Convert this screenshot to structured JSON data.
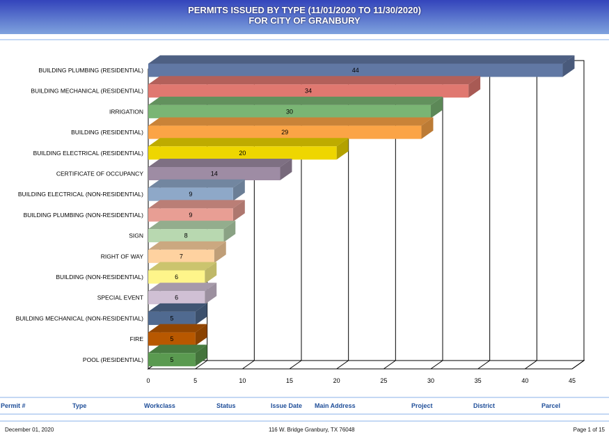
{
  "header": {
    "title_line1": "PERMITS ISSUED BY TYPE (11/01/2020 TO 11/30/2020)",
    "title_line2": "FOR CITY OF GRANBURY"
  },
  "chart_data": {
    "type": "bar",
    "orientation": "horizontal",
    "style": "3d",
    "grid": true,
    "categories": [
      "BUILDING PLUMBING (RESIDENTIAL)",
      "BUILDING MECHANICAL (RESIDENTIAL)",
      "IRRIGATION",
      "BUILDING (RESIDENTIAL)",
      "BUILDING ELECTRICAL (RESIDENTIAL)",
      "CERTIFICATE OF OCCUPANCY",
      "BUILDING ELECTRICAL (NON-RESIDENTIAL)",
      "BUILDING PLUMBING (NON-RESIDENTIAL)",
      "SIGN",
      "RIGHT OF WAY",
      "BUILDING (NON-RESIDENTIAL)",
      "SPECIAL EVENT",
      "BUILDING MECHANICAL (NON-RESIDENTIAL)",
      "FIRE",
      "POOL (RESIDENTIAL)"
    ],
    "values": [
      44,
      34,
      30,
      29,
      20,
      14,
      9,
      9,
      8,
      7,
      6,
      6,
      5,
      5,
      5
    ],
    "colors": [
      "#6178a4",
      "#e07870",
      "#7ab574",
      "#fba446",
      "#eed600",
      "#9e8ca4",
      "#8ea8c8",
      "#e89e94",
      "#b8d8b0",
      "#fed2a0",
      "#fef58a",
      "#d0c0d4",
      "#506a90",
      "#b85800",
      "#5a9a50"
    ],
    "xlim": [
      0,
      45
    ],
    "xticks": [
      0,
      5,
      10,
      15,
      20,
      25,
      30,
      35,
      40,
      45
    ]
  },
  "table_header": [
    "Permit #",
    "Type",
    "Workclass",
    "Status",
    "Issue Date",
    "Main Address",
    "Project",
    "District",
    "Parcel"
  ],
  "footer": {
    "date": "December 01, 2020",
    "address": "116 W. Bridge Granbury, TX 76048",
    "page": "Page 1 of 15"
  }
}
